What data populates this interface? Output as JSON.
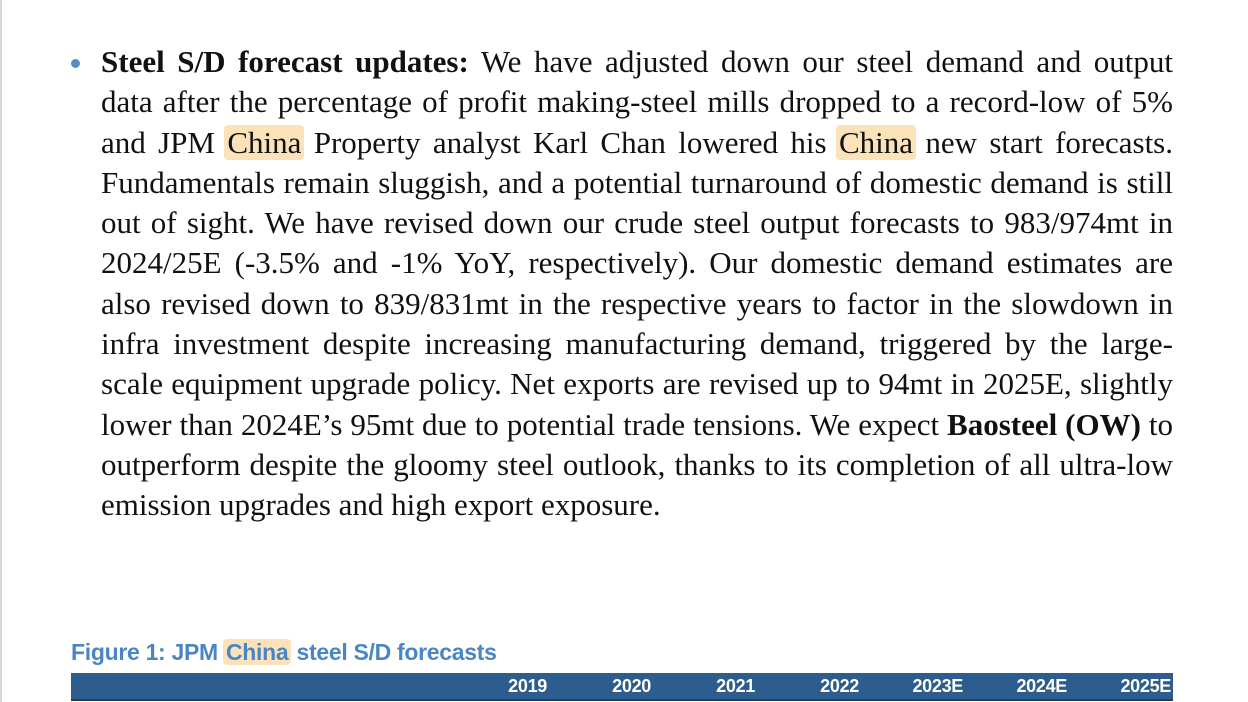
{
  "document": {
    "bullet": {
      "heading": "Steel S/D forecast updates:",
      "text_1": " We have adjusted down our steel demand and output data after the percentage of profit making-steel mills dropped to a record-low of 5% and JPM ",
      "highlight_1": "China",
      "text_2": " Property analyst Karl Chan lowered his ",
      "highlight_2": "China",
      "text_3": " new start forecasts. Fundamentals remain sluggish, and a potential turnaround of domestic demand is still out of sight. We have revised down our crude steel output forecasts to 983/974mt in 2024/25E (-3.5% and -1% YoY, respectively). Our domestic demand estimates are also revised down to 839/831mt in the respective years to factor in the slowdown in infra investment despite increasing manufacturing demand, triggered by the large-scale equipment upgrade policy. Net exports are revised up to 94mt in 2025E, slightly lower than 2024E’s 95mt due to potential trade tensions. We expect ",
      "bold_company": "Baosteel (OW)",
      "text_4": " to outperform despite the gloomy steel outlook, thanks to its completion of all ultra-low emission upgrades and high export exposure."
    },
    "figure": {
      "title_prefix": "Figure 1: JPM ",
      "title_highlight": "China",
      "title_suffix": " steel S/D forecasts",
      "years": [
        "2019",
        "2020",
        "2021",
        "2022",
        "2023E",
        "2024E",
        "2025E"
      ]
    },
    "colors": {
      "highlight": "#fbe2b8",
      "bullet": "#4f8fc9",
      "figure_title": "#4a86c5",
      "table_header": "#2d5d8e"
    }
  }
}
